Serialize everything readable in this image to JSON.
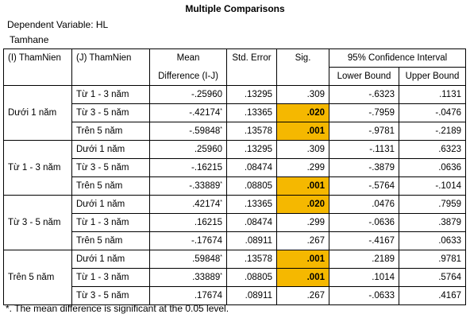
{
  "title": "Multiple Comparisons",
  "dependent_variable": "Dependent Variable: HL",
  "method": "Tamhane",
  "headers": {
    "i_group": "(I) ThamNien",
    "j_group": "(J) ThamNien",
    "mean_diff_line1": "Mean",
    "mean_diff_line2": "Difference (I-J)",
    "std_error": "Std. Error",
    "sig": "Sig.",
    "ci": "95% Confidence Interval",
    "lower": "Lower Bound",
    "upper": "Upper Bound"
  },
  "groups": [
    {
      "name": "Dưới 1 năm",
      "rows": [
        {
          "j": "Từ 1 - 3 năm",
          "md": "-.25960",
          "star": "",
          "se": ".13295",
          "sig": ".309",
          "highlight": false,
          "lb": "-.6323",
          "ub": ".1131"
        },
        {
          "j": "Từ 3 - 5 năm",
          "md": "-.42174",
          "star": "*",
          "se": ".13365",
          "sig": ".020",
          "highlight": true,
          "lb": "-.7959",
          "ub": "-.0476"
        },
        {
          "j": "Trên 5 năm",
          "md": "-.59848",
          "star": "*",
          "se": ".13578",
          "sig": ".001",
          "highlight": true,
          "lb": "-.9781",
          "ub": "-.2189"
        }
      ]
    },
    {
      "name": "Từ 1 - 3 năm",
      "rows": [
        {
          "j": "Dưới 1 năm",
          "md": ".25960",
          "star": "",
          "se": ".13295",
          "sig": ".309",
          "highlight": false,
          "lb": "-.1131",
          "ub": ".6323"
        },
        {
          "j": "Từ 3 - 5 năm",
          "md": "-.16215",
          "star": "",
          "se": ".08474",
          "sig": ".299",
          "highlight": false,
          "lb": "-.3879",
          "ub": ".0636"
        },
        {
          "j": "Trên 5 năm",
          "md": "-.33889",
          "star": "*",
          "se": ".08805",
          "sig": ".001",
          "highlight": true,
          "lb": "-.5764",
          "ub": "-.1014"
        }
      ]
    },
    {
      "name": "Từ 3 - 5 năm",
      "rows": [
        {
          "j": "Dưới 1 năm",
          "md": ".42174",
          "star": "*",
          "se": ".13365",
          "sig": ".020",
          "highlight": true,
          "lb": ".0476",
          "ub": ".7959"
        },
        {
          "j": "Từ 1 - 3 năm",
          "md": ".16215",
          "star": "",
          "se": ".08474",
          "sig": ".299",
          "highlight": false,
          "lb": "-.0636",
          "ub": ".3879"
        },
        {
          "j": "Trên 5 năm",
          "md": "-.17674",
          "star": "",
          "se": ".08911",
          "sig": ".267",
          "highlight": false,
          "lb": "-.4167",
          "ub": ".0633"
        }
      ]
    },
    {
      "name": "Trên 5 năm",
      "rows": [
        {
          "j": "Dưới 1 năm",
          "md": ".59848",
          "star": "*",
          "se": ".13578",
          "sig": ".001",
          "highlight": true,
          "lb": ".2189",
          "ub": ".9781"
        },
        {
          "j": "Từ 1 - 3 năm",
          "md": ".33889",
          "star": "*",
          "se": ".08805",
          "sig": ".001",
          "highlight": true,
          "lb": ".1014",
          "ub": ".5764"
        },
        {
          "j": "Từ 3 - 5 năm",
          "md": ".17674",
          "star": "",
          "se": ".08911",
          "sig": ".267",
          "highlight": false,
          "lb": "-.0633",
          "ub": ".4167"
        }
      ]
    }
  ],
  "footnote": "*. The mean difference is significant at the 0.05 level.",
  "highlight_color": "#f5b800"
}
